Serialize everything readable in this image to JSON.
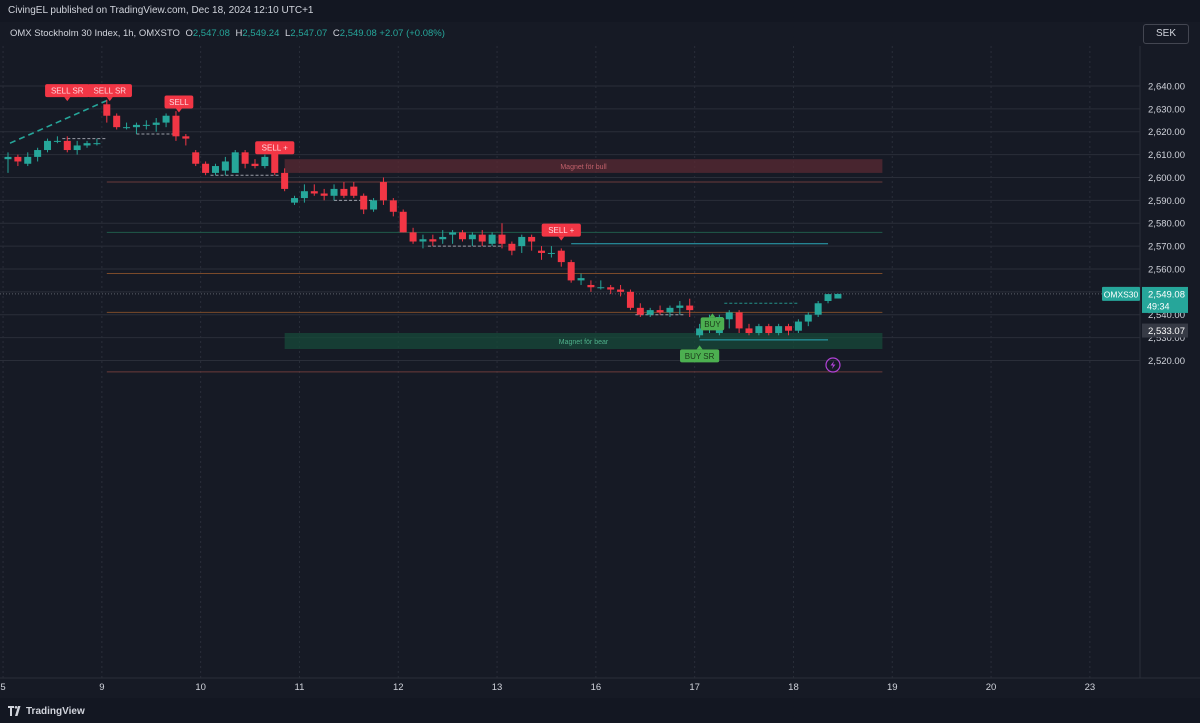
{
  "header": {
    "publisher": "CivingEL published on TradingView.com, Dec 18, 2024 12:10 UTC+1"
  },
  "legend": {
    "symbol": "OMX Stockholm 30 Index, 1h, OMXSTO",
    "open_label": "O",
    "open": "2,547.08",
    "high_label": "H",
    "high": "2,549.24",
    "low_label": "L",
    "low": "2,547.07",
    "close_label": "C",
    "close": "2,549.08",
    "change": "+2.07 (+0.08%)"
  },
  "currency": "SEK",
  "footer": {
    "brand": "TradingView",
    "logo_icon": "tradingview-logo-icon"
  },
  "colors": {
    "background": "#161a25",
    "up": "#26a69a",
    "down": "#f23645",
    "grid": "#2a2e39",
    "text": "#b2b5be",
    "buy_label": "#4caf50",
    "sell_label": "#f23645"
  },
  "chart_data": {
    "type": "candlestick",
    "x_axis": {
      "tick_labels": [
        "5",
        "9",
        "10",
        "11",
        "12",
        "13",
        "16",
        "17",
        "18",
        "19",
        "20",
        "23"
      ],
      "tick_bars": [
        -0.5,
        9.5,
        19.5,
        29.5,
        39.5,
        49.5,
        59.5,
        69.5,
        79.5,
        89.5,
        99.5,
        109.5
      ]
    },
    "y_axis": {
      "range": [
        2515,
        2645
      ],
      "ticks": [
        "2,520.00",
        "2,530.00",
        "2,540.00",
        "2,550.00",
        "2,560.00",
        "2,570.00",
        "2,580.00",
        "2,590.00",
        "2,600.00",
        "2,610.00",
        "2,620.00",
        "2,630.00",
        "2,640.00"
      ],
      "tick_values": [
        2520,
        2530,
        2540,
        2550,
        2560,
        2570,
        2580,
        2590,
        2600,
        2610,
        2620,
        2630,
        2640
      ]
    },
    "candles": [
      [
        2608,
        2611,
        2602,
        2609
      ],
      [
        2609,
        2610,
        2605,
        2607
      ],
      [
        2606,
        2611,
        2605,
        2609
      ],
      [
        2609,
        2613,
        2607,
        2612
      ],
      [
        2612,
        2617,
        2611,
        2616
      ],
      [
        2616,
        2618,
        2615,
        2616
      ],
      [
        2616,
        2618,
        2611,
        2612
      ],
      [
        2612,
        2616,
        2610,
        2614
      ],
      [
        2614,
        2616,
        2613,
        2615
      ],
      [
        2615,
        2617,
        2614,
        2615
      ],
      [
        2632,
        2634,
        2624,
        2627
      ],
      [
        2627,
        2628,
        2621,
        2622
      ],
      [
        2622,
        2624,
        2621,
        2622
      ],
      [
        2622,
        2624,
        2619,
        2623
      ],
      [
        2623,
        2625,
        2621,
        2623
      ],
      [
        2623,
        2626,
        2620,
        2624
      ],
      [
        2624,
        2628,
        2622,
        2627
      ],
      [
        2627,
        2629,
        2616,
        2618
      ],
      [
        2618,
        2619,
        2614,
        2617
      ],
      [
        2611,
        2612,
        2605,
        2606
      ],
      [
        2606,
        2607,
        2601,
        2602
      ],
      [
        2602,
        2606,
        2601,
        2605
      ],
      [
        2603,
        2609,
        2601,
        2607
      ],
      [
        2602,
        2612,
        2602,
        2611
      ],
      [
        2611,
        2612,
        2604,
        2606
      ],
      [
        2606,
        2608,
        2604,
        2605
      ],
      [
        2605,
        2610,
        2604,
        2609
      ],
      [
        2611,
        2612,
        2601,
        2602
      ],
      [
        2602,
        2604,
        2594,
        2595
      ],
      [
        2589,
        2592,
        2588,
        2591
      ],
      [
        2591,
        2597,
        2589,
        2594
      ],
      [
        2594,
        2597,
        2592,
        2593
      ],
      [
        2593,
        2595,
        2590,
        2592
      ],
      [
        2592,
        2597,
        2590,
        2595
      ],
      [
        2595,
        2598,
        2591,
        2592
      ],
      [
        2596,
        2598,
        2591,
        2592
      ],
      [
        2592,
        2593,
        2584,
        2586
      ],
      [
        2586,
        2591,
        2585,
        2590
      ],
      [
        2598,
        2600,
        2588,
        2590
      ],
      [
        2590,
        2591,
        2583,
        2585
      ],
      [
        2585,
        2586,
        2576,
        2576
      ],
      [
        2576,
        2578,
        2571,
        2572
      ],
      [
        2572,
        2575,
        2569,
        2573
      ],
      [
        2573,
        2575,
        2570,
        2572
      ],
      [
        2573,
        2577,
        2571,
        2574
      ],
      [
        2575,
        2577,
        2571,
        2576
      ],
      [
        2576,
        2577,
        2572,
        2573
      ],
      [
        2573,
        2576,
        2570,
        2575
      ],
      [
        2575,
        2577,
        2570,
        2572
      ],
      [
        2571,
        2576,
        2570,
        2575
      ],
      [
        2575,
        2580,
        2569,
        2571
      ],
      [
        2571,
        2572,
        2566,
        2568
      ],
      [
        2570,
        2575,
        2567,
        2574
      ],
      [
        2574,
        2575,
        2568,
        2572
      ],
      [
        2568,
        2570,
        2564,
        2567
      ],
      [
        2567,
        2570,
        2565,
        2567
      ],
      [
        2568,
        2569,
        2561,
        2563
      ],
      [
        2563,
        2564,
        2554,
        2555
      ],
      [
        2555,
        2558,
        2553,
        2556
      ],
      [
        2553,
        2555,
        2550,
        2552
      ],
      [
        2552,
        2555,
        2551,
        2552
      ],
      [
        2552,
        2553,
        2549,
        2551
      ],
      [
        2551,
        2553,
        2548,
        2550
      ],
      [
        2550,
        2551,
        2542,
        2543
      ],
      [
        2543,
        2545,
        2539,
        2540
      ],
      [
        2540,
        2543,
        2539,
        2542
      ],
      [
        2542,
        2544,
        2540,
        2541
      ],
      [
        2541,
        2544,
        2539,
        2543
      ],
      [
        2543,
        2546,
        2540,
        2544
      ],
      [
        2544,
        2547,
        2539,
        2542
      ],
      [
        2531,
        2536,
        2530,
        2534
      ],
      [
        2534,
        2540,
        2532,
        2538
      ],
      [
        2532,
        2540,
        2531,
        2539
      ],
      [
        2538,
        2542,
        2534,
        2541
      ],
      [
        2541,
        2542,
        2532,
        2534
      ],
      [
        2534,
        2536,
        2531,
        2532
      ],
      [
        2532,
        2536,
        2531,
        2535
      ],
      [
        2535,
        2536,
        2531,
        2532
      ],
      [
        2532,
        2536,
        2531,
        2535
      ],
      [
        2535,
        2536,
        2531,
        2533
      ],
      [
        2533,
        2538,
        2532,
        2537
      ],
      [
        2537,
        2541,
        2535,
        2540
      ],
      [
        2540,
        2546,
        2539,
        2545
      ],
      [
        2546,
        2549,
        2545,
        2549
      ],
      [
        2547.08,
        2549.24,
        2547.07,
        2549.08
      ]
    ],
    "zones": [
      {
        "label": "Magnet för bull",
        "bar_from": 28,
        "bar_to": 88.5,
        "y_from": 2602,
        "y_to": 2608,
        "color": "#5a2a33"
      },
      {
        "label": "Magnet för bear",
        "bar_from": 28,
        "bar_to": 88.5,
        "y_from": 2525,
        "y_to": 2532,
        "color": "#174a3a"
      }
    ],
    "signals": [
      {
        "text": "SELL SR",
        "bar": 6,
        "y": 2638,
        "side": "sell"
      },
      {
        "text": "SELL SR",
        "bar": 10.3,
        "y": 2638,
        "side": "sell"
      },
      {
        "text": "SELL",
        "bar": 17.3,
        "y": 2633,
        "side": "sell"
      },
      {
        "text": "SELL +",
        "bar": 27,
        "y": 2613,
        "side": "sell"
      },
      {
        "text": "SELL +",
        "bar": 56,
        "y": 2577,
        "side": "sell"
      },
      {
        "text": "BUY",
        "bar": 71.3,
        "y": 2536,
        "side": "buy"
      },
      {
        "text": "BUY SR",
        "bar": 70,
        "y": 2522,
        "side": "buy"
      }
    ],
    "h_lines": [
      {
        "y": 2598,
        "bar_from": 10,
        "bar_to": 88.5,
        "color": "#6b3a3a"
      },
      {
        "y": 2576,
        "bar_from": 10,
        "bar_to": 88.5,
        "color": "#1f5a4a"
      },
      {
        "y": 2571,
        "bar_from": 57,
        "bar_to": 83,
        "color": "#2aa8b8"
      },
      {
        "y": 2558,
        "bar_from": 10,
        "bar_to": 88.5,
        "color": "#7a4a2a"
      },
      {
        "y": 2541,
        "bar_from": 10,
        "bar_to": 88.5,
        "color": "#7a4a2a"
      },
      {
        "y": 2529,
        "bar_from": 70,
        "bar_to": 83,
        "color": "#2aa8b8"
      },
      {
        "y": 2515,
        "bar_from": 10,
        "bar_to": 88.5,
        "color": "#6b3a3a"
      }
    ],
    "dashed_levels": [
      {
        "y": 2617,
        "bar_from": 5.5,
        "bar_to": 10,
        "color": "#b2b5be"
      },
      {
        "y": 2619,
        "bar_from": 13,
        "bar_to": 17,
        "color": "#b2b5be"
      },
      {
        "y": 2601,
        "bar_from": 20.5,
        "bar_to": 27.5,
        "color": "#b2b5be"
      },
      {
        "y": 2590,
        "bar_from": 33,
        "bar_to": 37,
        "color": "#b2b5be"
      },
      {
        "y": 2570,
        "bar_from": 42.5,
        "bar_to": 50,
        "color": "#b2b5be"
      },
      {
        "y": 2540,
        "bar_from": 63.5,
        "bar_to": 68.5,
        "color": "#b2b5be"
      },
      {
        "y": 2545,
        "bar_from": 72.5,
        "bar_to": 80,
        "color": "#26a69a"
      }
    ],
    "trend_line": {
      "bar_from": 0.2,
      "y_from": 2615,
      "bar_to": 10.2,
      "y_to": 2634,
      "color": "#26a69a"
    },
    "current_price": {
      "symbol": "OMXS30",
      "value": "2,549.08",
      "countdown": "49:34",
      "y": 2549.08
    },
    "level_label": {
      "value": "2,533.07",
      "y": 2533.07
    },
    "alert_icon": {
      "name": "lightning-icon",
      "bar": 83.5,
      "y": 2518
    }
  }
}
